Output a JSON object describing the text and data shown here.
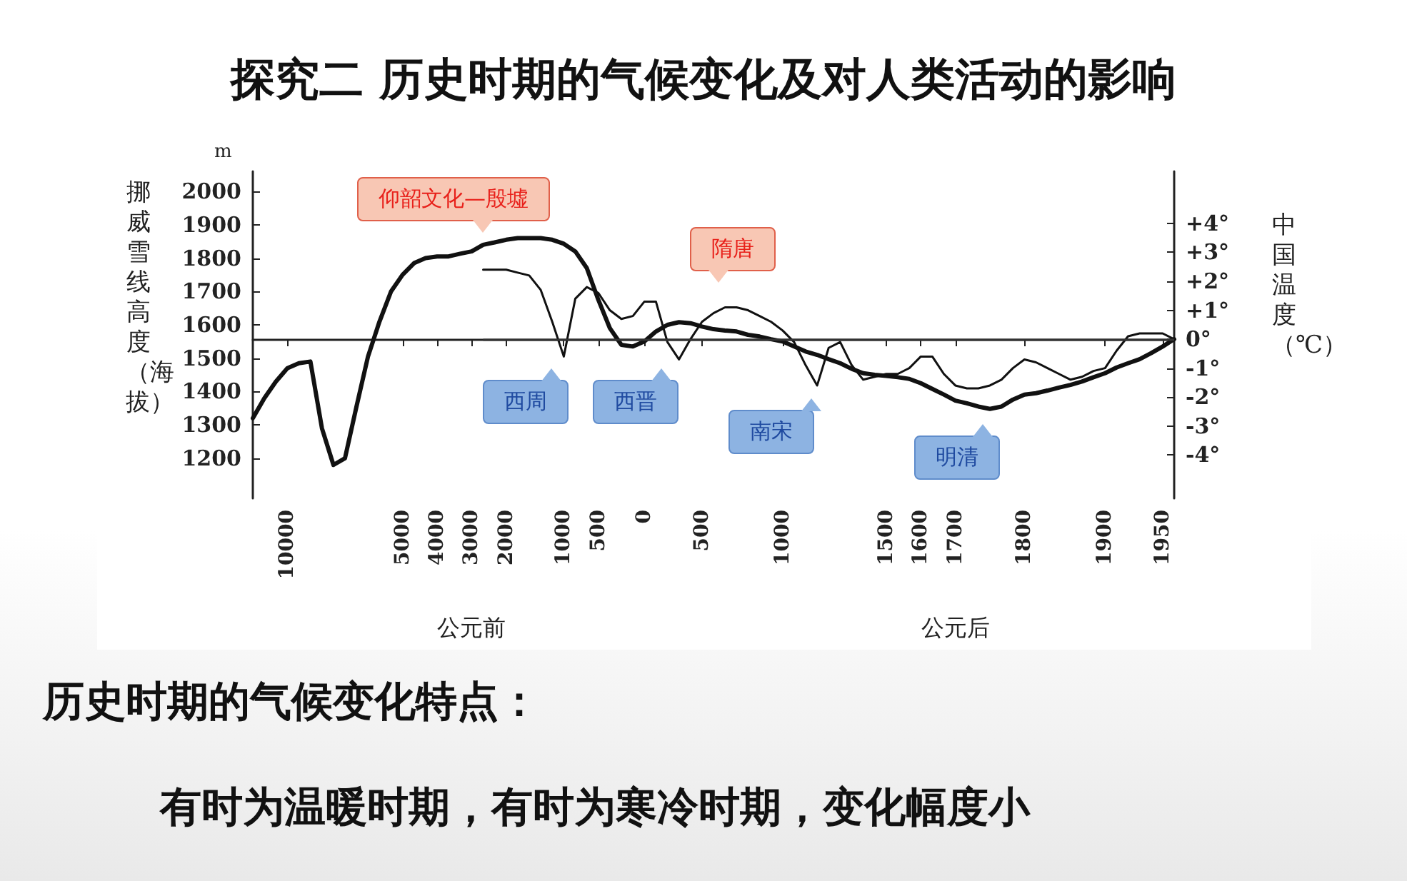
{
  "chart_data": {
    "type": "line",
    "title": "探究二 历史时期的气候变化及对人类活动的影响",
    "ylabel": "挪威雪线高度（海拔）",
    "y2label": "中国温度（℃）",
    "categories": [
      null,
      null,
      null,
      "10000",
      null,
      null,
      null,
      null,
      null,
      null,
      null,
      null,
      null,
      "5000",
      null,
      null,
      "4000",
      null,
      null,
      "3000",
      null,
      null,
      "2000",
      null,
      null,
      null,
      null,
      "1000",
      null,
      null,
      "500",
      null,
      null,
      null,
      "0",
      null,
      null,
      null,
      null,
      "500",
      null,
      null,
      null,
      null,
      null,
      null,
      "1000",
      null,
      null,
      null,
      null,
      null,
      null,
      null,
      null,
      "1500",
      null,
      null,
      "1600",
      null,
      null,
      "1700",
      null,
      null,
      null,
      null,
      null,
      "1800",
      null,
      null,
      null,
      null,
      null,
      null,
      "1900",
      null,
      null,
      null,
      null,
      "1950",
      null
    ],
    "series": [
      {
        "color": "#111111",
        "values": [
          1320,
          1380,
          1430,
          1470,
          1485,
          1490,
          1290,
          1180,
          1200,
          1355,
          1505,
          1610,
          1700,
          1750,
          1785,
          1800,
          1805,
          1805,
          1813,
          1820,
          1840,
          1847,
          1855,
          1860,
          1860,
          1860,
          1855,
          1843,
          1820,
          1770,
          1675,
          1590,
          1540,
          1535,
          1550,
          1580,
          1600,
          1608,
          1605,
          1595,
          1587,
          1583,
          1580,
          1570,
          1565,
          1557,
          1550,
          1535,
          1520,
          1510,
          1497,
          1485,
          1468,
          1455,
          1450,
          1447,
          1443,
          1438,
          1425,
          1408,
          1391,
          1373,
          1365,
          1355,
          1348,
          1355,
          1376,
          1391,
          1395,
          1403,
          1412,
          1420,
          1430,
          1443,
          1455,
          1472,
          1485,
          1497,
          1515,
          1535,
          1557
        ]
      },
      {
        "color": "#111111",
        "axis": "y2",
        "values": [
          null,
          null,
          null,
          null,
          null,
          null,
          null,
          null,
          null,
          null,
          null,
          null,
          null,
          null,
          null,
          null,
          null,
          null,
          null,
          null,
          2.4,
          2.4,
          2.4,
          2.3,
          2.2,
          1.7,
          0.6,
          -0.6,
          1.4,
          1.8,
          1.6,
          1.0,
          0.7,
          0.8,
          1.3,
          1.3,
          -0.1,
          -0.7,
          0.0,
          0.6,
          0.9,
          1.1,
          1.1,
          1.0,
          0.8,
          0.6,
          0.3,
          -0.1,
          -0.9,
          -1.6,
          -0.3,
          -0.1,
          -0.9,
          -1.4,
          -1.3,
          -1.2,
          -1.2,
          -1.0,
          -0.6,
          -0.6,
          -1.2,
          -1.6,
          -1.7,
          -1.7,
          -1.6,
          -1.4,
          -1.0,
          -0.7,
          -0.8,
          -1.0,
          -1.2,
          -1.4,
          -1.3,
          -1.1,
          -1.0,
          -0.4,
          0.1,
          0.2,
          0.2,
          0.2,
          0.0
        ]
      }
    ],
    "ylim": [
      1080,
      2060
    ],
    "yticks": [
      1200,
      1300,
      1400,
      1500,
      1600,
      1700,
      1800,
      1900,
      2000
    ],
    "y2lim": [
      -5.5,
      5.8
    ],
    "y2ticks": [
      {
        "value": 4,
        "label": "+4°"
      },
      {
        "value": 3,
        "label": "+3°"
      },
      {
        "value": 2,
        "label": "+2°"
      },
      {
        "value": 1,
        "label": "+1°"
      },
      {
        "value": 0,
        "label": "0°"
      },
      {
        "value": -1,
        "label": "-1°"
      },
      {
        "value": -2,
        "label": "-2°"
      },
      {
        "value": -3,
        "label": "-3°"
      },
      {
        "value": -4,
        "label": "-4°"
      }
    ],
    "ref_lines": [
      {
        "axis": "y2",
        "value": 0,
        "color": "#333333"
      }
    ],
    "grid": false,
    "marker": "none",
    "line_style": "solid",
    "annotations": [
      "m",
      "公元前",
      "公元后",
      "仰韶文化—殷墟",
      "隋唐",
      "西周",
      "西晋",
      "南宋",
      "明清",
      "历史时期的气候变化特点：",
      "有时为温暖时期，有时为寒冷时期，变化幅度小"
    ]
  }
}
